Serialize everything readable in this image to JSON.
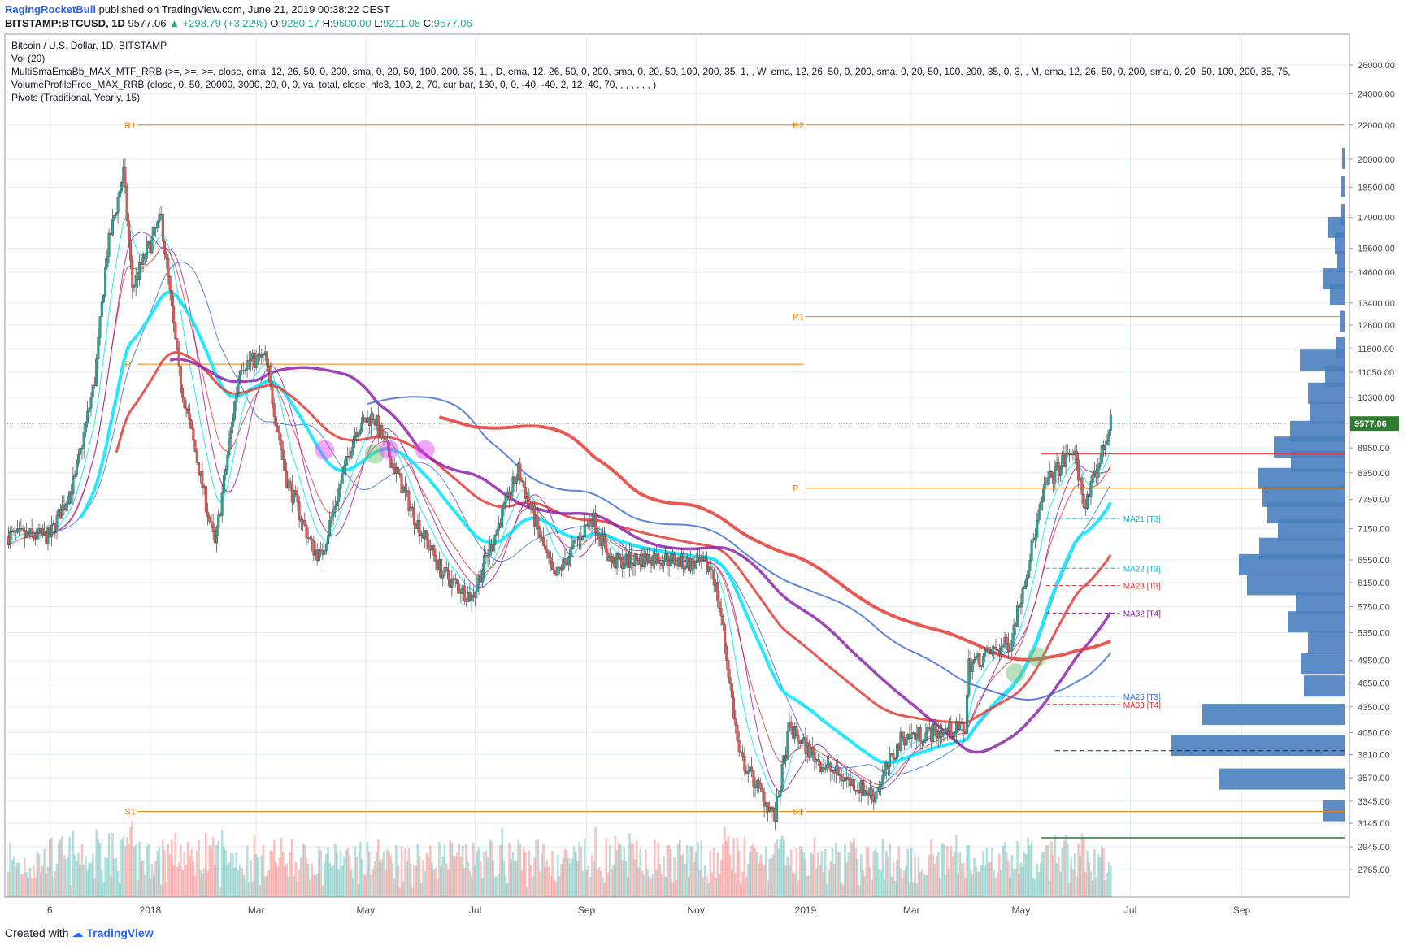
{
  "header": {
    "author": "RagingRocketBull",
    "published": "published on TradingView.com, June 21, 2019 00:38:22 CEST",
    "symbol": "BITSTAMP:BTCUSD, 1D",
    "last": "9577.06",
    "change": "+298.79 (+3.22%)",
    "o_label": "O:",
    "o_value": "9280.17",
    "h_label": "H:",
    "h_value": "9600.00",
    "l_label": "L:",
    "l_value": "9211.08",
    "c_label": "C:",
    "c_value": "9577.06"
  },
  "legend": [
    "Bitcoin / U.S. Dollar, 1D, BITSTAMP",
    "Vol (20)",
    "MultiSmaEmaBb_MAX_MTF_RRB (>=, >=, >=, close, ema, 12, 26, 50, 0, 200, sma, 0, 20, 50, 100, 200, 35, 1, , D, ema, 12, 26, 50, 0, 200, sma, 0, 20, 50, 100, 200, 35, 1, , W, ema, 12, 26, 50, 0, 200, sma, 0, 20, 50, 100, 200, 35, 0, 3, , M, ema, 12, 26, 50, 0, 200, sma, 0, 20, 50, 100, 200, 35, 75,",
    "VolumeProfileFree_MAX_RRB (close, 0, 50, 20000, 3000, 20, 0, 0, va, total, close, hlc3, 100, 2, 70, cur bar, 130, 0, 0, -40, -40, 2, 12, 40, 70, , , , , , , )",
    "Pivots (Traditional, Yearly, 15)"
  ],
  "footer": {
    "created_with": "Created with",
    "brand": "TradingView"
  },
  "colors": {
    "ema_fast": "#00e5ff",
    "ema_slow": "#e53935",
    "sma_purple": "#8e24aa",
    "sma_blue": "#3f6fd8",
    "candle_up": "#26a69a",
    "candle_down": "#ef5350",
    "pivot": "#f57c00",
    "vprofile": "#4a7fbf",
    "last_price_bg": "#2e7d32"
  },
  "chart_data": {
    "type": "candlestick",
    "title": "Bitcoin / U.S. Dollar, 1D, BITSTAMP",
    "y_axis_ticks": [
      "26000.00",
      "24000.00",
      "22000.00",
      "20000.00",
      "18500.00",
      "17000.00",
      "15600.00",
      "14600.00",
      "13400.00",
      "12600.00",
      "11800.00",
      "11050.00",
      "10300.00",
      "9577.06",
      "8950.00",
      "8350.00",
      "7750.00",
      "7150.00",
      "6550.00",
      "6150.00",
      "5750.00",
      "5350.00",
      "4950.00",
      "4650.00",
      "4350.00",
      "4050.00",
      "3810.00",
      "3570.00",
      "3345.00",
      "3145.00",
      "2945.00",
      "2765.00"
    ],
    "y_scale": "log",
    "x_axis_ticks": [
      "6",
      "2018",
      "Mar",
      "May",
      "Jul",
      "Sep",
      "Nov",
      "2019",
      "Mar",
      "May",
      "Jul",
      "Sep"
    ],
    "last_price": "9577.06",
    "price_path": [
      [
        "2017-11-06",
        7000
      ],
      [
        "2017-11-20",
        8200
      ],
      [
        "2017-12-01",
        10800
      ],
      [
        "2017-12-08",
        15500
      ],
      [
        "2017-12-17",
        19300
      ],
      [
        "2017-12-22",
        14000
      ],
      [
        "2018-01-07",
        17000
      ],
      [
        "2018-01-17",
        11000
      ],
      [
        "2018-02-06",
        6800
      ],
      [
        "2018-02-20",
        11300
      ],
      [
        "2018-03-06",
        11500
      ],
      [
        "2018-03-18",
        8200
      ],
      [
        "2018-04-01",
        6800
      ],
      [
        "2018-04-06",
        6600
      ],
      [
        "2018-04-25",
        9400
      ],
      [
        "2018-05-05",
        9800
      ],
      [
        "2018-05-28",
        7400
      ],
      [
        "2018-06-13",
        6300
      ],
      [
        "2018-06-29",
        5900
      ],
      [
        "2018-07-25",
        8400
      ],
      [
        "2018-08-14",
        6200
      ],
      [
        "2018-09-04",
        7400
      ],
      [
        "2018-09-15",
        6500
      ],
      [
        "2018-10-10",
        6600
      ],
      [
        "2018-11-10",
        6400
      ],
      [
        "2018-11-15",
        5600
      ],
      [
        "2018-11-25",
        3800
      ],
      [
        "2018-12-15",
        3200
      ],
      [
        "2018-12-23",
        4100
      ],
      [
        "2019-01-10",
        3700
      ],
      [
        "2019-02-08",
        3400
      ],
      [
        "2019-02-24",
        4000
      ],
      [
        "2019-03-31",
        4100
      ],
      [
        "2019-04-02",
        4900
      ],
      [
        "2019-04-25",
        5200
      ],
      [
        "2019-05-15",
        8100
      ],
      [
        "2019-05-30",
        8900
      ],
      [
        "2019-06-06",
        7600
      ],
      [
        "2019-06-20",
        9577
      ]
    ],
    "pivot_levels": [
      {
        "label": "R2",
        "value": 22000
      },
      {
        "label": "R1",
        "value": 12900
      },
      {
        "label": "P",
        "value": 8000
      },
      {
        "label": "S1",
        "value": 3250
      }
    ],
    "prior_pivot_levels": [
      {
        "label": "R1",
        "value": 22000
      },
      {
        "label": "P",
        "value": 11300
      },
      {
        "label": "S1",
        "value": 3250
      }
    ],
    "ma_labels": [
      {
        "label": "MA21 [T3]",
        "value": 7350
      },
      {
        "label": "MA22 [T3]",
        "value": 6400
      },
      {
        "label": "MA23 [T3]",
        "value": 6100
      },
      {
        "label": "MA32 [T4]",
        "value": 5650
      },
      {
        "label": "MA25 [T3]",
        "value": 4480
      },
      {
        "label": "MA33 [T4]",
        "value": 4380
      }
    ],
    "volume_profile": [
      {
        "price": 20000,
        "size": 3
      },
      {
        "price": 18500,
        "size": 4
      },
      {
        "price": 17100,
        "size": 5
      },
      {
        "price": 16500,
        "size": 20
      },
      {
        "price": 15800,
        "size": 12
      },
      {
        "price": 15000,
        "size": 9
      },
      {
        "price": 14300,
        "size": 27
      },
      {
        "price": 13700,
        "size": 18
      },
      {
        "price": 12700,
        "size": 6
      },
      {
        "price": 11800,
        "size": 11
      },
      {
        "price": 11400,
        "size": 55
      },
      {
        "price": 10900,
        "size": 24
      },
      {
        "price": 10400,
        "size": 45
      },
      {
        "price": 9850,
        "size": 43
      },
      {
        "price": 9350,
        "size": 67
      },
      {
        "price": 8950,
        "size": 87
      },
      {
        "price": 8600,
        "size": 66
      },
      {
        "price": 8200,
        "size": 107
      },
      {
        "price": 7800,
        "size": 101
      },
      {
        "price": 7450,
        "size": 95
      },
      {
        "price": 7100,
        "size": 82
      },
      {
        "price": 6750,
        "size": 105
      },
      {
        "price": 6450,
        "size": 130
      },
      {
        "price": 6100,
        "size": 120
      },
      {
        "price": 5800,
        "size": 60
      },
      {
        "price": 5500,
        "size": 70
      },
      {
        "price": 5200,
        "size": 45
      },
      {
        "price": 4900,
        "size": 54
      },
      {
        "price": 4600,
        "size": 50
      },
      {
        "price": 4250,
        "size": 175
      },
      {
        "price": 3900,
        "size": 213
      },
      {
        "price": 3550,
        "size": 154
      },
      {
        "price": 3250,
        "size": 27
      }
    ]
  }
}
